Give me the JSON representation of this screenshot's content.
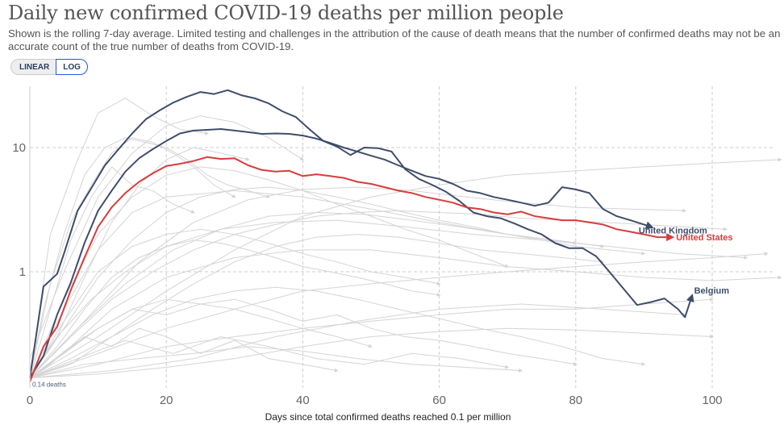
{
  "header": {
    "title": "Daily new confirmed COVID-19 deaths per million people",
    "subtitle": "Shown is the rolling 7-day average. Limited testing and challenges in the attribution of the cause of death means that the number of confirmed deaths may not be an accurate count of the true number of deaths from COVID-19."
  },
  "scale_toggle": {
    "options": [
      "LINEAR",
      "LOG"
    ],
    "selected": "LOG"
  },
  "colors": {
    "highlight_dark": "#3f4d6b",
    "highlight_red": "#d73c3c",
    "background_lines": "#d4d4d4",
    "grid": "#cccccc",
    "toggle_active_border": "#1e5dd6"
  },
  "chart_data": {
    "type": "line",
    "title": "Daily new confirmed COVID-19 deaths per million people",
    "xlabel": "Days since total confirmed deaths reached 0.1 per million",
    "ylabel": "",
    "yscale": "log",
    "xlim": [
      0,
      110
    ],
    "ylim": [
      0.13,
      32
    ],
    "xticks": [
      0,
      20,
      40,
      60,
      80,
      100
    ],
    "xtick_labels": [
      "0",
      "20",
      "40",
      "60",
      "80",
      "100"
    ],
    "yticks": [
      1,
      10
    ],
    "ytick_labels": [
      "1",
      "10"
    ],
    "grid": true,
    "start_annotation": "0.14 deaths",
    "highlighted_series": [
      {
        "name": "Belgium",
        "label": "Belgium",
        "color": "#3f4d6b",
        "x": [
          0,
          2,
          4,
          5,
          7,
          9,
          11,
          13,
          15,
          17,
          19,
          21,
          23,
          25,
          27,
          29,
          31,
          33,
          35,
          37,
          39,
          41,
          43,
          45,
          47,
          49,
          51,
          53,
          55,
          57,
          59,
          61,
          63,
          65,
          67,
          69,
          71,
          73,
          75,
          77,
          79,
          81,
          83,
          85,
          87,
          89,
          91,
          93,
          95,
          96,
          97
        ],
        "y": [
          0.14,
          0.76,
          0.96,
          1.4,
          3.1,
          4.7,
          7.2,
          9.7,
          13,
          16.9,
          19.9,
          23,
          25.6,
          28,
          27,
          29,
          26.4,
          24.9,
          22.7,
          19.6,
          17.6,
          14,
          11.3,
          10.2,
          8.7,
          10,
          9.9,
          9.3,
          6.7,
          5.6,
          5,
          4.4,
          3.7,
          3,
          2.8,
          2.7,
          2.45,
          2.2,
          2,
          1.7,
          1.55,
          1.55,
          1.33,
          0.99,
          0.73,
          0.54,
          0.57,
          0.61,
          0.5,
          0.43,
          0.63
        ]
      },
      {
        "name": "United Kingdom",
        "label": "United Kingdom",
        "color": "#3f4d6b",
        "x": [
          0,
          2,
          4,
          6,
          8,
          10,
          12,
          14,
          16,
          18,
          20,
          22,
          24,
          26,
          28,
          30,
          32,
          34,
          36,
          38,
          40,
          42,
          44,
          46,
          48,
          50,
          52,
          54,
          56,
          58,
          60,
          62,
          64,
          66,
          68,
          70,
          72,
          74,
          76,
          78,
          80,
          82,
          84,
          86,
          88,
          90,
          91
        ],
        "y": [
          0.14,
          0.21,
          0.45,
          0.82,
          1.7,
          3.1,
          4.5,
          6.4,
          8.2,
          9.7,
          11.3,
          13,
          13.7,
          13.9,
          14.1,
          13.7,
          13.3,
          12.9,
          13,
          12.9,
          12.5,
          11.8,
          10.9,
          10,
          9.3,
          8.6,
          8,
          7.2,
          6.5,
          5.9,
          5.6,
          5.1,
          4.5,
          4.3,
          4,
          3.8,
          3.6,
          3.4,
          3.6,
          4.8,
          4.6,
          4.3,
          3.2,
          2.8,
          2.6,
          2.4,
          2.3
        ]
      },
      {
        "name": "United States",
        "label": "United States",
        "color": "#d73c3c",
        "x": [
          0,
          2,
          4,
          6,
          8,
          10,
          12,
          14,
          16,
          18,
          20,
          22,
          24,
          26,
          28,
          30,
          32,
          34,
          36,
          38,
          40,
          42,
          44,
          46,
          48,
          50,
          52,
          54,
          56,
          58,
          60,
          62,
          64,
          66,
          68,
          70,
          72,
          74,
          76,
          78,
          80,
          82,
          84,
          86,
          88,
          90,
          92,
          94
        ],
        "y": [
          0.13,
          0.25,
          0.36,
          0.71,
          1.3,
          2.3,
          3.3,
          4.3,
          5.3,
          6.2,
          7.1,
          7.4,
          7.8,
          8.4,
          8.1,
          8.2,
          7.2,
          6.6,
          6.4,
          6.5,
          5.9,
          6.1,
          5.9,
          5.7,
          5.3,
          5.1,
          4.8,
          4.5,
          4.3,
          4,
          3.8,
          3.6,
          3.3,
          3.2,
          3,
          2.9,
          3.05,
          2.8,
          2.7,
          2.6,
          2.6,
          2.5,
          2.4,
          2.2,
          2.1,
          2,
          1.9,
          1.9
        ]
      }
    ],
    "background_series_note": "Other countries shown as unlabeled light grey lines",
    "background_series": [
      {
        "x": [
          0,
          3,
          7,
          10,
          14,
          18,
          22,
          26
        ],
        "y": [
          0.14,
          2,
          8,
          19,
          25,
          18,
          14,
          13
        ]
      },
      {
        "x": [
          0,
          5,
          10,
          15,
          20,
          25,
          30,
          35,
          40
        ],
        "y": [
          0.2,
          1,
          4,
          9,
          15,
          18,
          16,
          12,
          8
        ]
      },
      {
        "x": [
          0,
          4,
          9,
          14,
          20,
          28,
          36,
          45,
          55,
          65,
          75,
          85,
          95,
          105
        ],
        "y": [
          0.15,
          0.3,
          0.6,
          1,
          1.6,
          2.2,
          2.5,
          2.6,
          2.3,
          2,
          1.8,
          1.6,
          1.4,
          1.3
        ]
      },
      {
        "x": [
          0,
          6,
          12,
          20,
          30,
          40,
          50,
          60,
          70,
          80,
          90,
          100,
          110
        ],
        "y": [
          0.14,
          0.25,
          0.5,
          0.9,
          1.3,
          1.5,
          1.5,
          1.3,
          1.1,
          1,
          0.9,
          0.85,
          0.9
        ]
      },
      {
        "x": [
          0,
          3,
          6,
          10,
          15,
          20,
          25,
          30,
          35,
          40,
          45,
          50
        ],
        "y": [
          0.14,
          0.18,
          0.25,
          0.35,
          0.5,
          0.6,
          0.55,
          0.5,
          0.42,
          0.35,
          0.3,
          0.25
        ]
      },
      {
        "x": [
          0,
          8,
          16,
          24,
          32,
          40,
          48,
          56,
          64,
          72,
          80,
          88,
          96
        ],
        "y": [
          0.14,
          0.4,
          1.2,
          2.5,
          3.8,
          4.6,
          4.8,
          4.5,
          4,
          3.6,
          3.3,
          3.2,
          3.1
        ]
      },
      {
        "x": [
          0,
          5,
          10,
          15,
          20,
          25,
          30,
          35,
          40,
          45,
          50,
          55,
          60,
          65,
          70
        ],
        "y": [
          0.14,
          0.6,
          2,
          4,
          6,
          7,
          6.5,
          5.5,
          4.5,
          3.5,
          2.8,
          2.2,
          1.8,
          1.4,
          1.1
        ]
      },
      {
        "x": [
          0,
          10,
          20,
          30,
          40,
          50,
          60,
          70,
          80,
          90,
          100,
          108
        ],
        "y": [
          0.14,
          0.22,
          0.35,
          0.5,
          0.7,
          0.8,
          0.9,
          1,
          1.1,
          1.2,
          1.3,
          1.4
        ]
      },
      {
        "x": [
          0,
          4,
          8,
          12,
          16,
          20,
          24,
          28,
          32
        ],
        "y": [
          0.14,
          0.3,
          0.9,
          2.5,
          5,
          8,
          10,
          9,
          8
        ]
      },
      {
        "x": [
          0,
          6,
          12,
          18,
          24,
          30,
          36,
          42,
          48,
          54,
          60,
          66,
          72,
          78,
          84,
          90
        ],
        "y": [
          0.14,
          0.2,
          0.3,
          0.45,
          0.6,
          0.7,
          0.75,
          0.7,
          0.6,
          0.5,
          0.42,
          0.35,
          0.3,
          0.25,
          0.2,
          0.18
        ]
      },
      {
        "x": [
          0,
          5,
          10,
          15,
          20,
          30,
          40,
          50,
          60,
          70,
          80
        ],
        "y": [
          0.14,
          0.5,
          1.5,
          3,
          4,
          4.5,
          4,
          3.2,
          2.5,
          2,
          1.7
        ]
      },
      {
        "x": [
          0,
          3,
          6,
          9,
          12,
          15,
          18,
          21,
          24
        ],
        "y": [
          0.14,
          0.5,
          1.8,
          4,
          7,
          5,
          4.5,
          3.5,
          3
        ]
      },
      {
        "x": [
          0,
          10,
          20,
          30,
          40,
          50,
          60,
          70,
          80,
          90,
          100
        ],
        "y": [
          0.14,
          0.18,
          0.25,
          0.3,
          0.35,
          0.4,
          0.45,
          0.5,
          0.5,
          0.55,
          0.6
        ]
      },
      {
        "x": [
          0,
          7,
          14,
          21,
          28,
          35,
          42,
          49,
          56,
          63,
          70,
          77,
          84
        ],
        "y": [
          0.14,
          0.35,
          0.8,
          1.5,
          2.2,
          2.8,
          3,
          2.9,
          2.6,
          2.3,
          2,
          1.8,
          1.6
        ]
      },
      {
        "x": [
          0,
          4,
          8,
          12,
          16,
          20,
          25,
          30,
          35,
          40,
          45
        ],
        "y": [
          0.14,
          0.2,
          0.3,
          0.25,
          0.35,
          0.3,
          0.22,
          0.28,
          0.2,
          0.18,
          0.16
        ]
      },
      {
        "x": [
          0,
          5,
          10,
          15,
          20,
          25,
          30,
          35,
          40,
          45,
          50,
          55,
          60
        ],
        "y": [
          0.14,
          0.4,
          1,
          1.6,
          2,
          2.2,
          2,
          1.7,
          1.4,
          1.2,
          1,
          0.9,
          0.8
        ]
      },
      {
        "x": [
          0,
          8,
          16,
          24,
          32,
          40,
          48,
          56,
          64,
          72
        ],
        "y": [
          0.14,
          0.18,
          0.2,
          0.22,
          0.25,
          0.23,
          0.2,
          0.18,
          0.17,
          0.16
        ]
      },
      {
        "x": [
          0,
          6,
          12,
          18,
          24,
          30,
          36,
          42,
          48,
          54,
          60,
          66,
          72,
          78,
          84,
          90,
          96,
          102
        ],
        "y": [
          0.14,
          0.3,
          0.6,
          1,
          1.5,
          2,
          2.4,
          2.8,
          3,
          3.1,
          3,
          2.9,
          2.7,
          2.6,
          2.5,
          2.4,
          2.3,
          2.2
        ]
      },
      {
        "x": [
          0,
          3,
          6,
          9,
          12,
          15,
          18,
          21,
          24,
          27,
          30
        ],
        "y": [
          0.14,
          0.8,
          2.5,
          5,
          9,
          12,
          11,
          9,
          7,
          5,
          4
        ]
      },
      {
        "x": [
          0,
          10,
          20,
          30,
          40,
          50,
          60,
          70,
          80,
          90,
          100,
          110
        ],
        "y": [
          0.14,
          0.3,
          0.7,
          1.5,
          2.8,
          4,
          5,
          6,
          6.5,
          7,
          7.5,
          8
        ]
      },
      {
        "x": [
          0,
          5,
          10,
          15,
          20,
          25,
          30,
          35,
          40,
          45,
          50,
          55,
          60,
          65,
          70,
          75,
          80
        ],
        "y": [
          0.14,
          0.22,
          0.35,
          0.5,
          0.45,
          0.55,
          0.6,
          0.5,
          0.4,
          0.45,
          0.35,
          0.3,
          0.28,
          0.25,
          0.22,
          0.2,
          0.18
        ]
      },
      {
        "x": [
          0,
          4,
          8,
          12,
          16,
          20,
          24,
          28,
          32,
          36,
          40,
          44,
          48,
          52,
          56,
          60
        ],
        "y": [
          0.14,
          0.25,
          0.5,
          0.9,
          1.3,
          1.6,
          1.8,
          1.7,
          1.5,
          1.3,
          1.1,
          1,
          0.9,
          0.8,
          0.7,
          0.65
        ]
      },
      {
        "x": [
          0,
          12,
          24,
          36,
          48,
          60,
          72,
          84,
          96
        ],
        "y": [
          0.14,
          0.16,
          0.2,
          0.3,
          0.4,
          0.5,
          0.55,
          0.5,
          0.45
        ]
      },
      {
        "x": [
          0,
          2,
          5,
          8,
          11,
          14,
          17,
          20,
          23,
          26,
          29,
          32,
          35
        ],
        "y": [
          0.14,
          0.5,
          2,
          6,
          10,
          12,
          11,
          10,
          8,
          6,
          5,
          4.5,
          4
        ]
      },
      {
        "x": [
          0,
          6,
          12,
          18,
          24,
          30,
          36,
          42,
          48,
          54,
          60,
          66,
          72,
          78,
          84
        ],
        "y": [
          0.14,
          0.18,
          0.3,
          0.5,
          0.8,
          1.2,
          1.6,
          1.9,
          2,
          1.9,
          1.7,
          1.5,
          1.4,
          1.3,
          1.2
        ]
      },
      {
        "x": [
          0,
          7,
          14,
          21,
          28,
          35,
          42,
          49,
          56,
          63,
          70
        ],
        "y": [
          0.14,
          0.2,
          0.28,
          0.22,
          0.3,
          0.25,
          0.2,
          0.18,
          0.22,
          0.2,
          0.17
        ]
      },
      {
        "x": [
          0,
          5,
          10,
          15,
          20,
          25,
          30,
          35,
          40,
          45,
          50,
          55,
          60,
          65,
          70,
          75,
          80,
          85,
          90
        ],
        "y": [
          0.14,
          0.35,
          0.9,
          1.8,
          3,
          4,
          4.6,
          4.8,
          4.5,
          4,
          3.5,
          3,
          2.6,
          2.3,
          2,
          1.8,
          1.6,
          1.5,
          1.4
        ]
      },
      {
        "x": [
          0,
          10,
          20,
          30,
          40,
          50,
          60,
          70,
          80,
          90,
          100
        ],
        "y": [
          0.14,
          0.15,
          0.17,
          0.2,
          0.25,
          0.3,
          0.33,
          0.35,
          0.34,
          0.32,
          0.3
        ]
      }
    ]
  }
}
